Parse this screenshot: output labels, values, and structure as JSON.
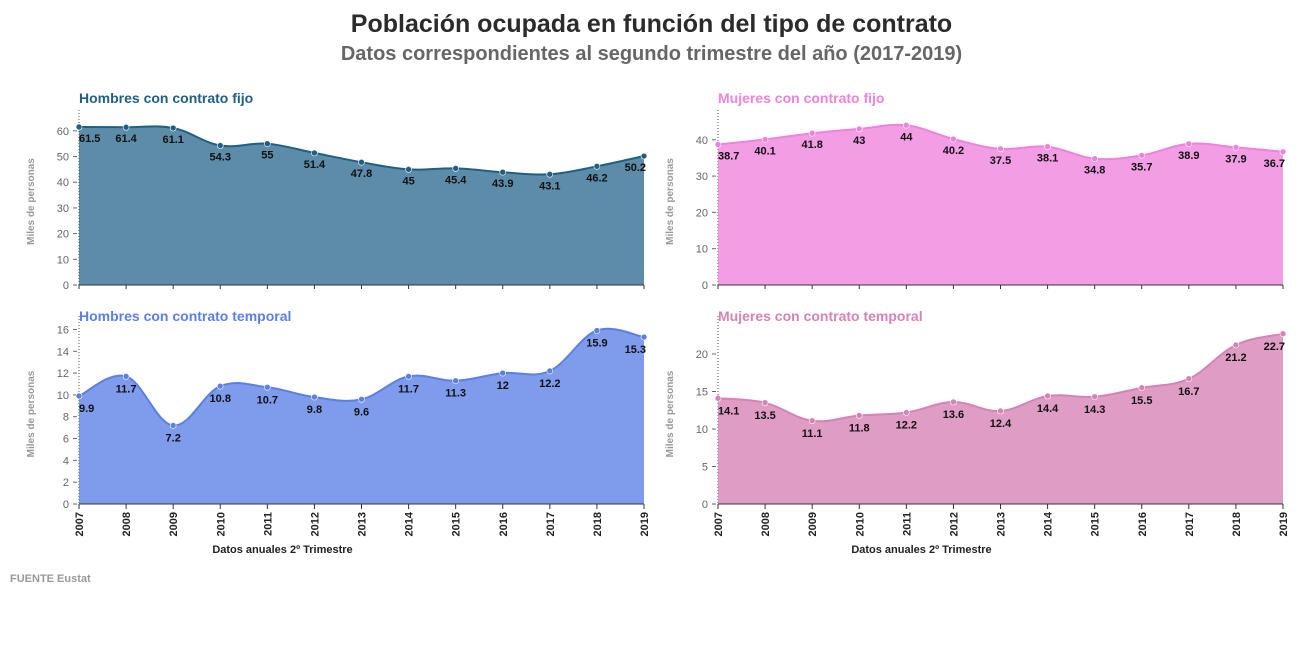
{
  "header": {
    "title": "Población ocupada en función del tipo de contrato",
    "subtitle": "Datos correspondientes al segundo trimestre del año (2017-2019)"
  },
  "source": "FUENTE Eustat",
  "colors": {
    "hombres_fijo": "#1f5f87",
    "mujeres_fijo": "#ee82dc",
    "hombres_temporal": "#5b7fe6",
    "mujeres_temporal": "#d682b5"
  },
  "chart_data": [
    {
      "type": "area",
      "title": "Hombres con contrato fijo",
      "ylabel": "Miles de personas",
      "xlabel": "",
      "x": [
        "2007",
        "2008",
        "2009",
        "2010",
        "2011",
        "2012",
        "2013",
        "2014",
        "2015",
        "2016",
        "2017",
        "2018",
        "2019"
      ],
      "values": [
        61.5,
        61.4,
        61.1,
        54.3,
        55,
        51.4,
        47.8,
        45,
        45.4,
        43.9,
        43.1,
        46.2,
        50.2
      ],
      "ylim": [
        0,
        65
      ],
      "yticks": [
        0,
        10,
        20,
        30,
        40,
        50,
        60
      ],
      "color": "#1f5f87"
    },
    {
      "type": "area",
      "title": "Mujeres con contrato fijo",
      "ylabel": "Miles de personas",
      "xlabel": "",
      "x": [
        "2007",
        "2008",
        "2009",
        "2010",
        "2011",
        "2012",
        "2013",
        "2014",
        "2015",
        "2016",
        "2017",
        "2018",
        "2019"
      ],
      "values": [
        38.7,
        40.1,
        41.8,
        43,
        44,
        40.2,
        37.5,
        38.1,
        34.8,
        35.7,
        38.9,
        37.9,
        36.7
      ],
      "ylim": [
        0,
        46
      ],
      "yticks": [
        0,
        10,
        20,
        30,
        40
      ],
      "color": "#ee82dc"
    },
    {
      "type": "area",
      "title": "Hombres con contrato temporal",
      "ylabel": "Miles de personas",
      "xlabel": "Datos anuales 2º Trimestre",
      "x": [
        "2007",
        "2008",
        "2009",
        "2010",
        "2011",
        "2012",
        "2013",
        "2014",
        "2015",
        "2016",
        "2017",
        "2018",
        "2019"
      ],
      "values": [
        9.9,
        11.7,
        7.2,
        10.8,
        10.7,
        9.8,
        9.6,
        11.7,
        11.3,
        12,
        12.2,
        15.9,
        15.3
      ],
      "ylim": [
        0,
        16.5
      ],
      "yticks": [
        0,
        2,
        4,
        6,
        8,
        10,
        12,
        14,
        16
      ],
      "color": "#5b7fe6"
    },
    {
      "type": "area",
      "title": "Mujeres con contrato temporal",
      "ylabel": "Miles de personas",
      "xlabel": "Datos anuales 2º Trimestre",
      "x": [
        "2007",
        "2008",
        "2009",
        "2010",
        "2011",
        "2012",
        "2013",
        "2014",
        "2015",
        "2016",
        "2017",
        "2018",
        "2019"
      ],
      "values": [
        14.1,
        13.5,
        11.1,
        11.8,
        12.2,
        13.6,
        12.4,
        14.4,
        14.3,
        15.5,
        16.7,
        21.2,
        22.7
      ],
      "ylim": [
        0,
        24
      ],
      "yticks": [
        0,
        5,
        10,
        15,
        20
      ],
      "color": "#d682b5"
    }
  ]
}
